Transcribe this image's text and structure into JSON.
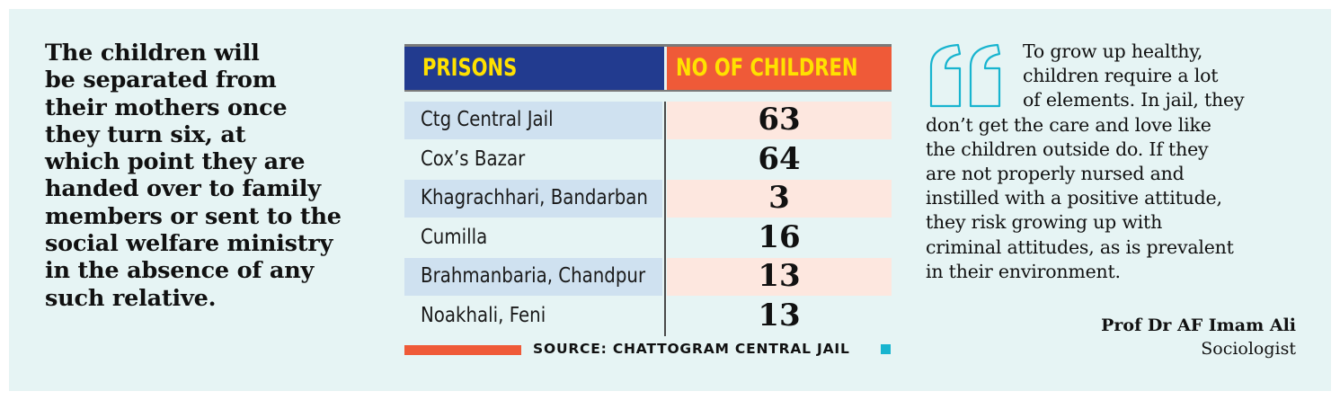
{
  "left_note": {
    "text": "The children will\nbe separated from\ntheir mothers once\nthey turn six, at\nwhich point they are\nhanded over to family\nmembers or sent to the\nsocial welfare ministry\nin the absence of any\nsuch relative."
  },
  "table": {
    "headers": {
      "prisons": "PRISONS",
      "count": "NO OF CHILDREN"
    },
    "rows": [
      {
        "prison": "Ctg Central Jail",
        "children": "63"
      },
      {
        "prison": "Cox’s Bazar",
        "children": "64"
      },
      {
        "prison": "Khagrachhari, Bandarban",
        "children": "3"
      },
      {
        "prison": "Cumilla",
        "children": "16"
      },
      {
        "prison": "Brahmanbaria, Chandpur",
        "children": "13"
      },
      {
        "prison": "Noakhali, Feni",
        "children": "13"
      }
    ],
    "source": "SOURCE: CHATTOGRAM CENTRAL JAIL"
  },
  "quote": {
    "lines": [
      "To grow up healthy,",
      "children require a lot",
      "of elements. In jail, they",
      "don’t get the care and love like",
      "the children outside do. If they",
      "are not properly nursed and",
      "instilled with a positive attitude,",
      "they risk growing up with",
      "criminal attitudes, as is prevalent",
      "in their environment."
    ],
    "author": "Prof Dr AF Imam Ali",
    "role": "Sociologist",
    "icon": "quote-mark-icon"
  },
  "colors": {
    "background": "#e6f4f4",
    "header_blue": "#223b8f",
    "header_orange": "#ef5a38",
    "header_text": "#ffe100",
    "row_blue": "#cfe1f0",
    "row_peach": "#fde7df",
    "accent_cyan": "#18b4cf"
  }
}
